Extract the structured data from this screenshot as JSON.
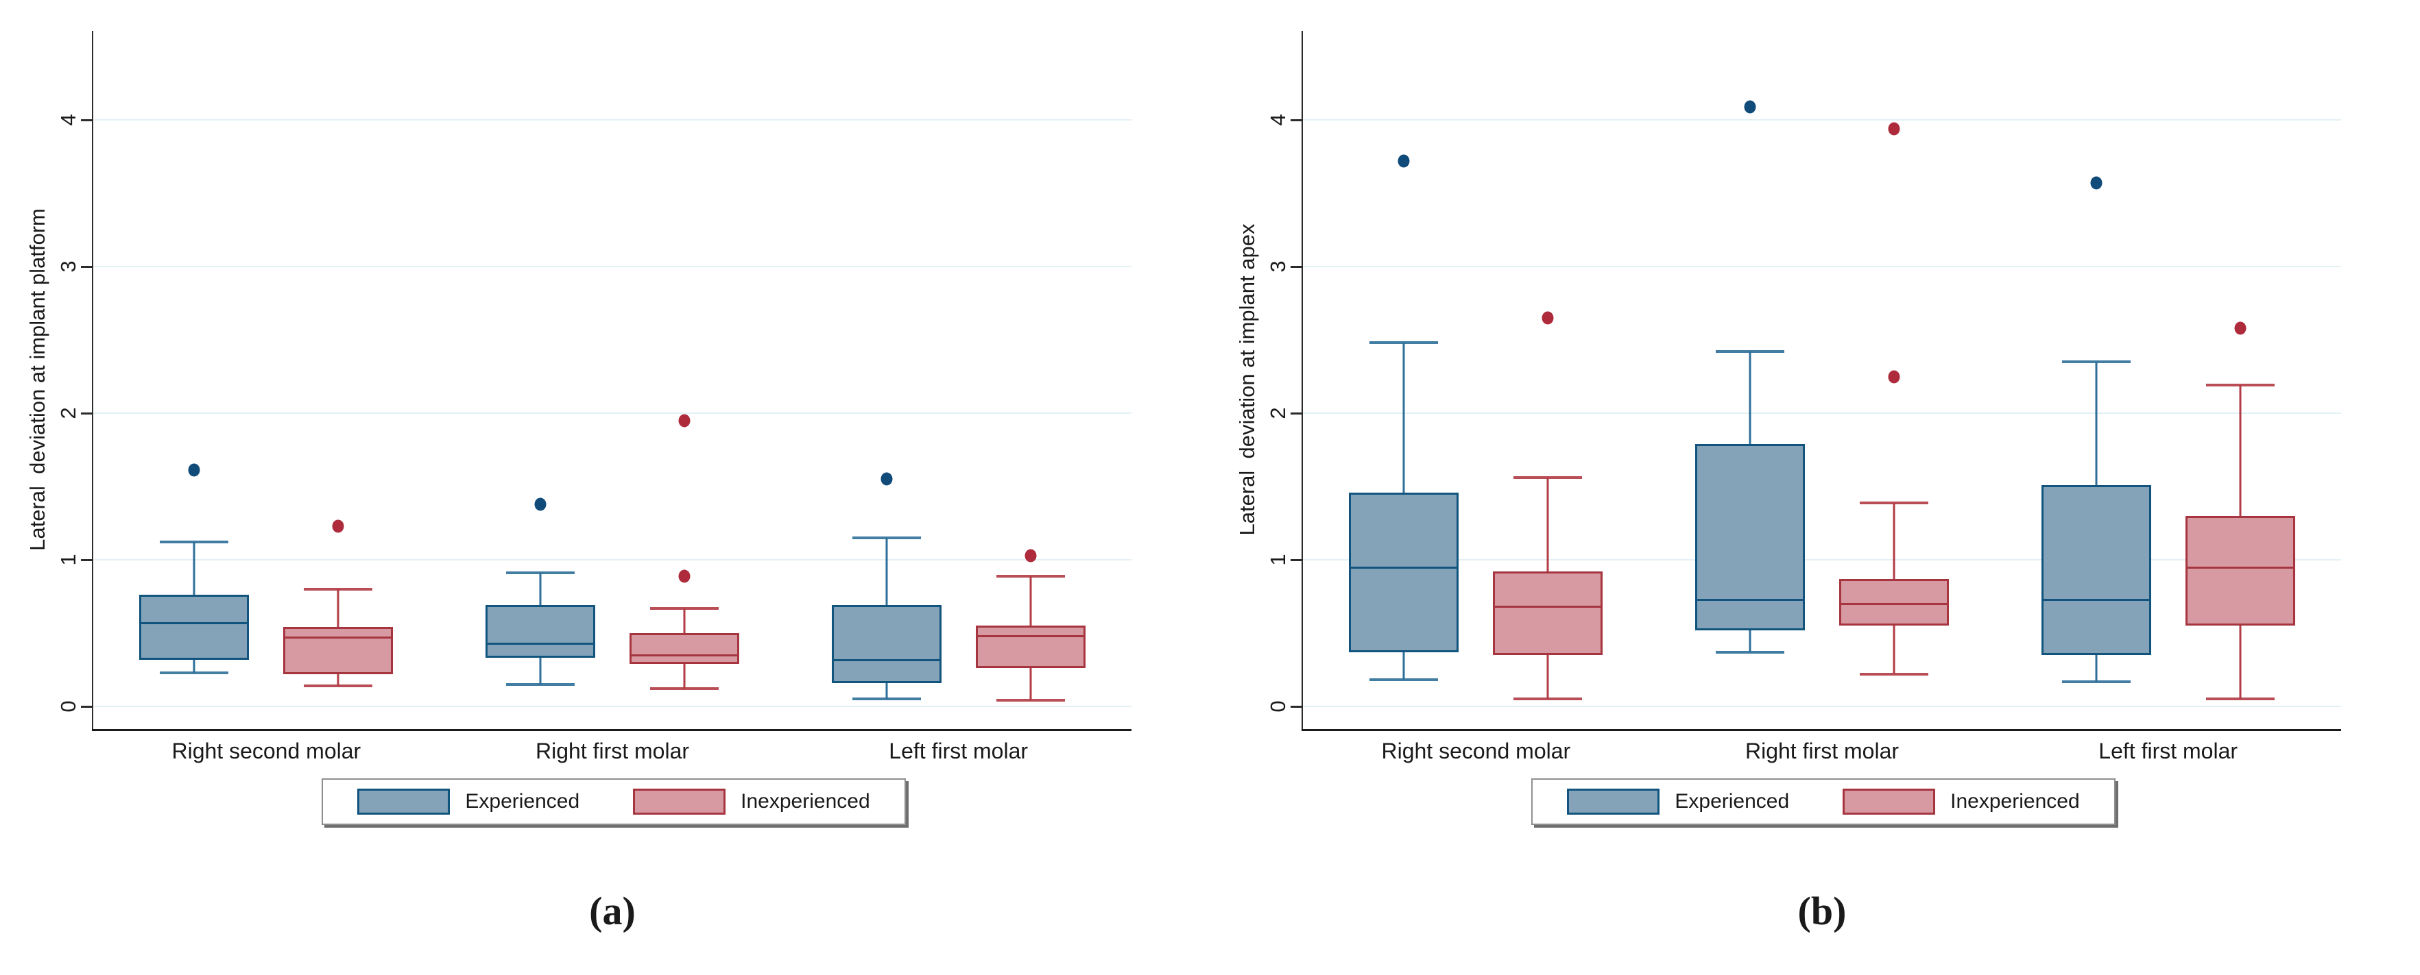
{
  "page": {
    "background": "#ffffff"
  },
  "colors": {
    "experienced_fill": "#84a3b9",
    "experienced_edge": "#11557f",
    "experienced_whisker": "#2e6f99",
    "experienced_outlier": "#114b7a",
    "inexperienced_fill": "#d89aa2",
    "inexperienced_edge": "#a63540",
    "inexperienced_whisker": "#b23b45",
    "inexperienced_outlier": "#ae2b3c",
    "gridline": "#e3f0f5",
    "axis": "#2b2b2b",
    "text": "#1a1a1a"
  },
  "legend": {
    "items": [
      {
        "key": "experienced",
        "label": "Experienced"
      },
      {
        "key": "inexperienced",
        "label": "Inexperienced"
      }
    ]
  },
  "chart_data": [
    {
      "type": "boxplot",
      "caption": "(a)",
      "ylabel": "Lateral  deviation at implant platform",
      "yticks": [
        "0",
        "1",
        "2",
        "3",
        "4"
      ],
      "ylim": [
        0,
        4.6
      ],
      "grid": "horizontal",
      "legend_position": "bottom",
      "categories": [
        "Right second molar",
        "Right first molar",
        "Left first molar"
      ],
      "series": [
        {
          "name": "Experienced",
          "key": "experienced",
          "boxes": [
            {
              "low": 0.23,
              "q1": 0.32,
              "median": 0.57,
              "q3": 0.76,
              "high": 1.12,
              "outliers": [
                1.61
              ]
            },
            {
              "low": 0.15,
              "q1": 0.33,
              "median": 0.43,
              "q3": 0.69,
              "high": 0.91,
              "outliers": [
                1.38
              ]
            },
            {
              "low": 0.05,
              "q1": 0.16,
              "median": 0.32,
              "q3": 0.69,
              "high": 1.15,
              "outliers": [
                1.55
              ]
            }
          ]
        },
        {
          "name": "Inexperienced",
          "key": "inexperienced",
          "boxes": [
            {
              "low": 0.14,
              "q1": 0.22,
              "median": 0.47,
              "q3": 0.54,
              "high": 0.8,
              "outliers": [
                1.23
              ]
            },
            {
              "low": 0.12,
              "q1": 0.29,
              "median": 0.35,
              "q3": 0.5,
              "high": 0.67,
              "outliers": [
                1.95,
                0.89
              ]
            },
            {
              "low": 0.04,
              "q1": 0.26,
              "median": 0.48,
              "q3": 0.55,
              "high": 0.89,
              "outliers": [
                1.03
              ]
            }
          ]
        }
      ]
    },
    {
      "type": "boxplot",
      "caption": "(b)",
      "ylabel": "Lateral  deviation at implant apex",
      "yticks": [
        "0",
        "1",
        "2",
        "3",
        "4"
      ],
      "ylim": [
        0,
        4.6
      ],
      "grid": "horizontal",
      "legend_position": "bottom",
      "categories": [
        "Right second molar",
        "Right first molar",
        "Left first molar"
      ],
      "series": [
        {
          "name": "Experienced",
          "key": "experienced",
          "boxes": [
            {
              "low": 0.18,
              "q1": 0.37,
              "median": 0.95,
              "q3": 1.46,
              "high": 2.48,
              "outliers": [
                3.72
              ]
            },
            {
              "low": 0.37,
              "q1": 0.52,
              "median": 0.73,
              "q3": 1.79,
              "high": 2.42,
              "outliers": [
                4.09
              ]
            },
            {
              "low": 0.17,
              "q1": 0.35,
              "median": 0.73,
              "q3": 1.51,
              "high": 2.35,
              "outliers": [
                3.57
              ]
            }
          ]
        },
        {
          "name": "Inexperienced",
          "key": "inexperienced",
          "boxes": [
            {
              "low": 0.05,
              "q1": 0.35,
              "median": 0.68,
              "q3": 0.92,
              "high": 1.56,
              "outliers": [
                2.65
              ]
            },
            {
              "low": 0.22,
              "q1": 0.55,
              "median": 0.7,
              "q3": 0.87,
              "high": 1.39,
              "outliers": [
                3.94,
                2.25
              ]
            },
            {
              "low": 0.05,
              "q1": 0.55,
              "median": 0.95,
              "q3": 1.3,
              "high": 2.19,
              "outliers": [
                2.58
              ]
            }
          ]
        }
      ]
    }
  ]
}
